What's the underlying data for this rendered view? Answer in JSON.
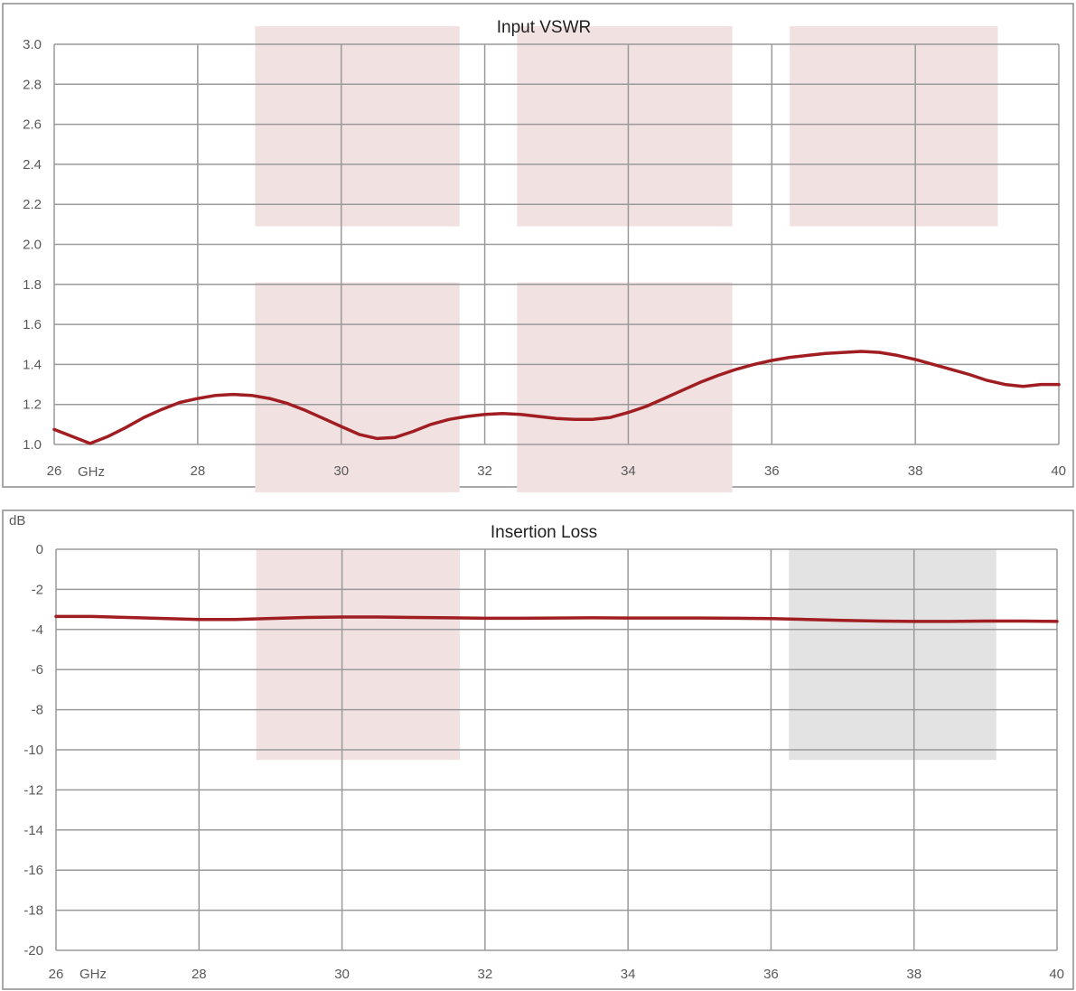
{
  "colors": {
    "series": "#a01d22",
    "band_red": "#f1e1e1",
    "band_gray": "#e3e3e3"
  },
  "chart_data": [
    {
      "id": "vswr",
      "type": "line",
      "title": "Input VSWR",
      "unit_label": "",
      "x_unit_label": "GHz",
      "xlim": [
        26,
        40
      ],
      "ylim": [
        1.0,
        3.0
      ],
      "x_ticks": [
        "26",
        "28",
        "30",
        "32",
        "34",
        "36",
        "38",
        "40"
      ],
      "y_ticks": [
        "1.0",
        "1.2",
        "1.4",
        "1.6",
        "1.8",
        "2.0",
        "2.2",
        "2.4",
        "2.6",
        "2.8",
        "3.0"
      ],
      "grid": true,
      "shaded_regions": [
        {
          "x": [
            28.8,
            31.65
          ],
          "y": [
            2.09,
            3.09
          ],
          "color": "red"
        },
        {
          "x": [
            32.45,
            35.45
          ],
          "y": [
            2.09,
            3.09
          ],
          "color": "red"
        },
        {
          "x": [
            36.25,
            39.15
          ],
          "y": [
            2.09,
            3.09
          ],
          "color": "red"
        },
        {
          "x": [
            28.8,
            31.65
          ],
          "y": [
            0.76,
            1.81
          ],
          "color": "red"
        },
        {
          "x": [
            32.45,
            35.45
          ],
          "y": [
            0.76,
            1.81
          ],
          "color": "red"
        }
      ],
      "series": [
        {
          "x": [
            26.0,
            26.25,
            26.5,
            26.75,
            27.0,
            27.25,
            27.5,
            27.75,
            28.0,
            28.25,
            28.5,
            28.75,
            29.0,
            29.25,
            29.5,
            29.75,
            30.0,
            30.25,
            30.5,
            30.75,
            31.0,
            31.25,
            31.5,
            31.75,
            32.0,
            32.25,
            32.5,
            32.75,
            33.0,
            33.25,
            33.5,
            33.75,
            34.0,
            34.25,
            34.5,
            34.75,
            35.0,
            35.25,
            35.5,
            35.75,
            36.0,
            36.25,
            36.5,
            36.75,
            37.0,
            37.25,
            37.5,
            37.75,
            38.0,
            38.25,
            38.5,
            38.75,
            39.0,
            39.25,
            39.5,
            39.75,
            40.0
          ],
          "y": [
            1.075,
            1.04,
            1.005,
            1.04,
            1.085,
            1.135,
            1.175,
            1.21,
            1.23,
            1.245,
            1.25,
            1.245,
            1.23,
            1.205,
            1.17,
            1.13,
            1.09,
            1.05,
            1.03,
            1.035,
            1.065,
            1.1,
            1.125,
            1.14,
            1.15,
            1.155,
            1.15,
            1.14,
            1.13,
            1.125,
            1.125,
            1.135,
            1.16,
            1.19,
            1.23,
            1.27,
            1.31,
            1.345,
            1.375,
            1.4,
            1.42,
            1.435,
            1.445,
            1.455,
            1.46,
            1.465,
            1.46,
            1.445,
            1.425,
            1.4,
            1.375,
            1.35,
            1.32,
            1.3,
            1.29,
            1.3,
            1.3
          ]
        }
      ]
    },
    {
      "id": "insertion-loss",
      "type": "line",
      "title": "Insertion Loss",
      "unit_label": "dB",
      "x_unit_label": "GHz",
      "xlim": [
        26,
        40
      ],
      "ylim": [
        -20,
        0
      ],
      "x_ticks": [
        "26",
        "28",
        "30",
        "32",
        "34",
        "36",
        "38",
        "40"
      ],
      "y_ticks": [
        "-20",
        "-18",
        "-16",
        "-14",
        "-12",
        "-10",
        "-8",
        "-6",
        "-4",
        "-2",
        "0"
      ],
      "grid": true,
      "shaded_regions": [
        {
          "x": [
            28.8,
            31.65
          ],
          "y": [
            -10.5,
            0
          ],
          "color": "red"
        },
        {
          "x": [
            36.25,
            39.15
          ],
          "y": [
            -10.5,
            0
          ],
          "color": "gray"
        }
      ],
      "series": [
        {
          "x": [
            26.0,
            26.5,
            27.0,
            27.5,
            28.0,
            28.5,
            29.0,
            29.5,
            30.0,
            30.5,
            31.0,
            31.5,
            32.0,
            32.5,
            33.0,
            33.5,
            34.0,
            34.5,
            35.0,
            35.5,
            36.0,
            36.5,
            37.0,
            37.5,
            38.0,
            38.5,
            39.0,
            39.5,
            40.0
          ],
          "y": [
            -3.35,
            -3.35,
            -3.4,
            -3.45,
            -3.5,
            -3.5,
            -3.45,
            -3.4,
            -3.38,
            -3.38,
            -3.4,
            -3.42,
            -3.44,
            -3.44,
            -3.43,
            -3.42,
            -3.43,
            -3.43,
            -3.43,
            -3.44,
            -3.46,
            -3.5,
            -3.55,
            -3.58,
            -3.6,
            -3.6,
            -3.58,
            -3.58,
            -3.6
          ]
        }
      ]
    }
  ]
}
